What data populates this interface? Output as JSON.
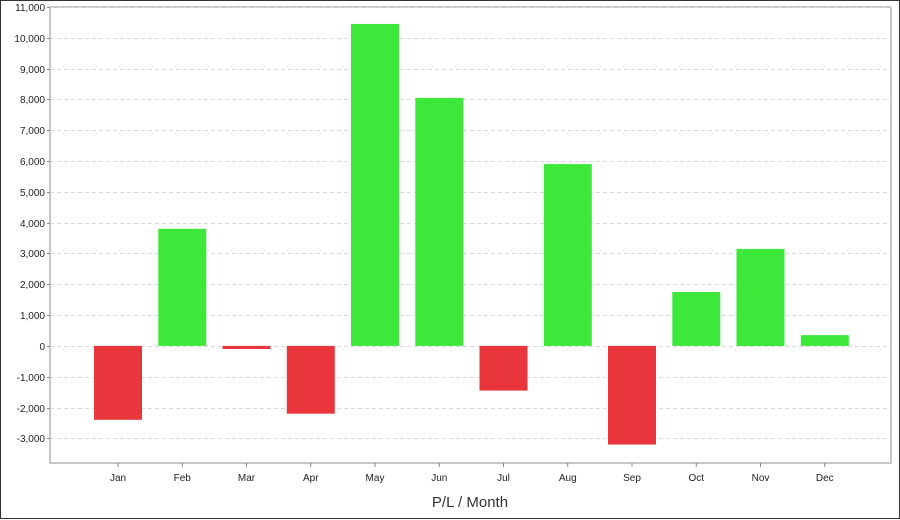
{
  "chart_data": {
    "type": "bar",
    "title": "",
    "xlabel": "P/L / Month",
    "ylabel": "",
    "categories": [
      "Jan",
      "Feb",
      "Mar",
      "Apr",
      "May",
      "Jun",
      "Jul",
      "Aug",
      "Sep",
      "Oct",
      "Nov",
      "Dec"
    ],
    "series": [
      {
        "values": [
          -2400,
          3800,
          -100,
          -2200,
          10450,
          8050,
          -1450,
          5900,
          -3200,
          1750,
          3150,
          350
        ]
      }
    ],
    "ylim": [
      -3800,
      11000
    ],
    "yticks": [
      -3000,
      -2000,
      -1000,
      0,
      1000,
      2000,
      3000,
      4000,
      5000,
      6000,
      7000,
      8000,
      9000,
      10000,
      11000
    ],
    "ytick_labels": [
      "-3,000",
      "-2,000",
      "-1,000",
      "0",
      "1,000",
      "2,000",
      "3,000",
      "4,000",
      "5,000",
      "6,000",
      "7,000",
      "8,000",
      "9,000",
      "10,000",
      "11,000"
    ],
    "grid": true,
    "legend": "none",
    "colors": {
      "positive": "#3ee83b",
      "negative": "#e8363c",
      "grid": "#d9d9d9",
      "axis": "#888888"
    }
  }
}
